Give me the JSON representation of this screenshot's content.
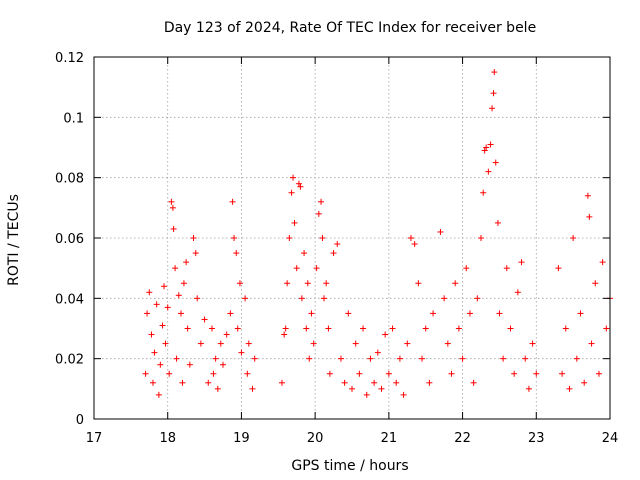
{
  "chart_data": {
    "type": "scatter",
    "title": "Day 123 of 2024, Rate Of TEC Index for receiver bele",
    "xlabel": "GPS time / hours",
    "ylabel": "ROTI / TECUs",
    "xlim": [
      17,
      24
    ],
    "ylim": [
      0,
      0.12
    ],
    "xticks": [
      17,
      18,
      19,
      20,
      21,
      22,
      23,
      24
    ],
    "yticks": [
      0,
      0.02,
      0.04,
      0.06,
      0.08,
      0.1,
      0.12
    ],
    "xtick_labels": [
      "17",
      "18",
      "19",
      "20",
      "21",
      "22",
      "23",
      "24"
    ],
    "ytick_labels": [
      "0",
      "0.02",
      "0.04",
      "0.06",
      "0.08",
      "0.1",
      "0.12"
    ],
    "grid": true,
    "marker": "+",
    "color": "#ff0000",
    "series": [
      {
        "name": "ROTI",
        "points": [
          [
            17.7,
            0.015
          ],
          [
            17.72,
            0.035
          ],
          [
            17.75,
            0.042
          ],
          [
            17.78,
            0.028
          ],
          [
            17.8,
            0.012
          ],
          [
            17.82,
            0.022
          ],
          [
            17.85,
            0.038
          ],
          [
            17.88,
            0.008
          ],
          [
            17.9,
            0.018
          ],
          [
            17.93,
            0.031
          ],
          [
            17.95,
            0.044
          ],
          [
            17.97,
            0.025
          ],
          [
            18.0,
            0.037
          ],
          [
            18.02,
            0.015
          ],
          [
            18.05,
            0.072
          ],
          [
            18.07,
            0.07
          ],
          [
            18.08,
            0.063
          ],
          [
            18.1,
            0.05
          ],
          [
            18.12,
            0.02
          ],
          [
            18.15,
            0.041
          ],
          [
            18.18,
            0.035
          ],
          [
            18.2,
            0.012
          ],
          [
            18.22,
            0.045
          ],
          [
            18.25,
            0.052
          ],
          [
            18.27,
            0.03
          ],
          [
            18.3,
            0.018
          ],
          [
            18.35,
            0.06
          ],
          [
            18.38,
            0.055
          ],
          [
            18.4,
            0.04
          ],
          [
            18.45,
            0.025
          ],
          [
            18.5,
            0.033
          ],
          [
            18.55,
            0.012
          ],
          [
            18.6,
            0.03
          ],
          [
            18.65,
            0.02
          ],
          [
            18.62,
            0.015
          ],
          [
            18.68,
            0.01
          ],
          [
            18.72,
            0.025
          ],
          [
            18.75,
            0.018
          ],
          [
            18.8,
            0.028
          ],
          [
            18.85,
            0.035
          ],
          [
            18.88,
            0.072
          ],
          [
            18.9,
            0.06
          ],
          [
            18.93,
            0.055
          ],
          [
            18.95,
            0.03
          ],
          [
            18.98,
            0.045
          ],
          [
            19.0,
            0.022
          ],
          [
            19.05,
            0.04
          ],
          [
            19.08,
            0.015
          ],
          [
            19.1,
            0.025
          ],
          [
            19.15,
            0.01
          ],
          [
            19.18,
            0.02
          ],
          [
            19.55,
            0.012
          ],
          [
            19.58,
            0.028
          ],
          [
            19.6,
            0.03
          ],
          [
            19.62,
            0.045
          ],
          [
            19.65,
            0.06
          ],
          [
            19.68,
            0.075
          ],
          [
            19.7,
            0.08
          ],
          [
            19.72,
            0.065
          ],
          [
            19.75,
            0.05
          ],
          [
            19.78,
            0.078
          ],
          [
            19.8,
            0.077
          ],
          [
            19.82,
            0.04
          ],
          [
            19.85,
            0.055
          ],
          [
            19.88,
            0.03
          ],
          [
            19.9,
            0.045
          ],
          [
            19.92,
            0.02
          ],
          [
            19.95,
            0.035
          ],
          [
            19.98,
            0.025
          ],
          [
            20.02,
            0.05
          ],
          [
            20.05,
            0.068
          ],
          [
            20.08,
            0.072
          ],
          [
            20.1,
            0.06
          ],
          [
            20.12,
            0.04
          ],
          [
            20.15,
            0.045
          ],
          [
            20.18,
            0.03
          ],
          [
            20.2,
            0.015
          ],
          [
            20.25,
            0.055
          ],
          [
            20.3,
            0.058
          ],
          [
            20.35,
            0.02
          ],
          [
            20.4,
            0.012
          ],
          [
            20.45,
            0.035
          ],
          [
            20.5,
            0.01
          ],
          [
            20.55,
            0.025
          ],
          [
            20.6,
            0.015
          ],
          [
            20.65,
            0.03
          ],
          [
            20.7,
            0.008
          ],
          [
            20.75,
            0.02
          ],
          [
            20.8,
            0.012
          ],
          [
            20.85,
            0.022
          ],
          [
            20.9,
            0.01
          ],
          [
            20.95,
            0.028
          ],
          [
            21.0,
            0.015
          ],
          [
            21.05,
            0.03
          ],
          [
            21.1,
            0.012
          ],
          [
            21.15,
            0.02
          ],
          [
            21.2,
            0.008
          ],
          [
            21.25,
            0.025
          ],
          [
            21.3,
            0.06
          ],
          [
            21.35,
            0.058
          ],
          [
            21.4,
            0.045
          ],
          [
            21.45,
            0.02
          ],
          [
            21.5,
            0.03
          ],
          [
            21.55,
            0.012
          ],
          [
            21.6,
            0.035
          ],
          [
            21.7,
            0.062
          ],
          [
            21.75,
            0.04
          ],
          [
            21.8,
            0.025
          ],
          [
            21.85,
            0.015
          ],
          [
            21.9,
            0.045
          ],
          [
            21.95,
            0.03
          ],
          [
            22.0,
            0.02
          ],
          [
            22.05,
            0.05
          ],
          [
            22.1,
            0.035
          ],
          [
            22.15,
            0.012
          ],
          [
            22.2,
            0.04
          ],
          [
            22.25,
            0.06
          ],
          [
            22.28,
            0.075
          ],
          [
            22.3,
            0.089
          ],
          [
            22.32,
            0.09
          ],
          [
            22.35,
            0.082
          ],
          [
            22.38,
            0.091
          ],
          [
            22.4,
            0.103
          ],
          [
            22.42,
            0.108
          ],
          [
            22.43,
            0.115
          ],
          [
            22.45,
            0.085
          ],
          [
            22.48,
            0.065
          ],
          [
            22.5,
            0.035
          ],
          [
            22.55,
            0.02
          ],
          [
            22.6,
            0.05
          ],
          [
            22.65,
            0.03
          ],
          [
            22.7,
            0.015
          ],
          [
            22.75,
            0.042
          ],
          [
            22.8,
            0.052
          ],
          [
            22.85,
            0.02
          ],
          [
            22.9,
            0.01
          ],
          [
            22.95,
            0.025
          ],
          [
            23.0,
            0.015
          ],
          [
            23.3,
            0.05
          ],
          [
            23.35,
            0.015
          ],
          [
            23.4,
            0.03
          ],
          [
            23.45,
            0.01
          ],
          [
            23.5,
            0.06
          ],
          [
            23.55,
            0.02
          ],
          [
            23.6,
            0.035
          ],
          [
            23.65,
            0.012
          ],
          [
            23.7,
            0.074
          ],
          [
            23.72,
            0.067
          ],
          [
            23.75,
            0.025
          ],
          [
            23.8,
            0.045
          ],
          [
            23.85,
            0.015
          ],
          [
            23.9,
            0.052
          ],
          [
            23.95,
            0.03
          ],
          [
            24.0,
            0.04
          ]
        ]
      }
    ]
  }
}
